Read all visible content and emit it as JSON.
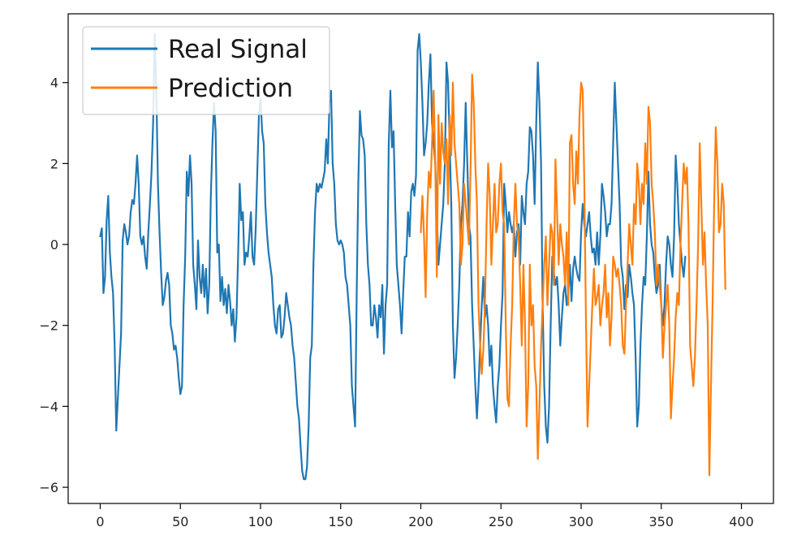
{
  "chart_data": {
    "type": "line",
    "title": "",
    "xlabel": "",
    "ylabel": "",
    "xlim": [
      -20,
      420
    ],
    "ylim": [
      -6.4,
      5.7
    ],
    "xticks": [
      0,
      50,
      100,
      150,
      200,
      250,
      300,
      350,
      400
    ],
    "yticks": [
      -6,
      -4,
      -2,
      0,
      2,
      4
    ],
    "grid": false,
    "legend_position": "top-left",
    "series": [
      {
        "name": "Real Signal",
        "color": "#1f77b4",
        "x_start": 0,
        "values": [
          0.2,
          0.4,
          -1.2,
          -0.8,
          0.6,
          1.2,
          -0.2,
          -0.8,
          -1.2,
          -2.5,
          -4.6,
          -3.8,
          -3.0,
          -2.2,
          0.1,
          0.5,
          0.3,
          0.0,
          0.2,
          0.8,
          1.1,
          1.0,
          1.5,
          2.2,
          1.5,
          0.2,
          0.0,
          0.2,
          -0.3,
          -0.6,
          0.3,
          1.0,
          1.8,
          3.0,
          5.2,
          3.8,
          1.5,
          0.3,
          -0.7,
          -1.5,
          -1.3,
          -0.9,
          -0.7,
          -1.0,
          -2.0,
          -2.2,
          -2.6,
          -2.5,
          -2.8,
          -3.3,
          -3.7,
          -3.5,
          -1.5,
          -0.3,
          1.8,
          1.2,
          2.2,
          1.5,
          -0.5,
          -1.0,
          -1.6,
          0.1,
          -0.8,
          -1.2,
          -0.5,
          -1.3,
          -0.6,
          -1.7,
          -1.0,
          1.2,
          2.5,
          3.5,
          2.8,
          -0.2,
          0.0,
          -1.4,
          -0.8,
          -1.5,
          -1.1,
          -1.7,
          -1.0,
          -1.4,
          -2.0,
          -1.6,
          -2.4,
          -1.8,
          -0.3,
          1.5,
          0.6,
          0.8,
          -0.5,
          -0.2,
          -0.3,
          0.2,
          0.8,
          -0.3,
          -0.5,
          0.4,
          1.8,
          3.2,
          3.6,
          2.8,
          2.5,
          1.0,
          0.3,
          -0.2,
          -0.5,
          -0.8,
          -1.5,
          -2.0,
          -2.2,
          -1.6,
          -1.5,
          -2.3,
          -2.2,
          -1.8,
          -1.2,
          -1.5,
          -1.8,
          -2.0,
          -2.5,
          -2.8,
          -3.4,
          -4.0,
          -4.3,
          -5.0,
          -5.6,
          -5.8,
          -5.8,
          -5.5,
          -4.5,
          -2.8,
          -2.5,
          -0.5,
          0.8,
          1.5,
          1.3,
          1.5,
          1.4,
          1.6,
          1.8,
          2.6,
          2.0,
          3.5,
          3.8,
          2.0,
          1.5,
          0.5,
          0.1,
          0.0,
          0.1,
          0.0,
          -0.2,
          -0.8,
          -1.0,
          -1.5,
          -2.0,
          -3.5,
          -4.0,
          -4.5,
          -1.2,
          1.5,
          3.3,
          2.7,
          2.6,
          2.2,
          0.5,
          -0.5,
          -1.0,
          -2.0,
          -2.0,
          -1.5,
          -1.8,
          -2.3,
          -1.5,
          -1.8,
          -1.0,
          -2.7,
          -1.5,
          -1.0,
          2.5,
          3.8,
          2.4,
          2.8,
          1.0,
          -0.5,
          -1.0,
          -1.5,
          -2.2,
          -1.2,
          -0.3,
          -0.3,
          0.8,
          0.2,
          1.3,
          1.5,
          1.2,
          1.7,
          4.8,
          5.2,
          4.5,
          3.5,
          2.2,
          2.5,
          3.0,
          4.0,
          4.7,
          3.0,
          2.5,
          2.0,
          0.8,
          -0.5,
          0.0,
          0.5,
          1.0,
          2.0,
          4.5,
          4.0,
          2.5,
          1.0,
          -2.0,
          -3.3,
          -2.8,
          -2.0,
          -1.0,
          0.5,
          1.0,
          2.0,
          3.5,
          2.0,
          0.5,
          0.2,
          -1.5,
          -2.5,
          -3.5,
          -4.3,
          -3.5,
          -2.5,
          -1.5,
          -0.8,
          -1.8,
          -1.5,
          -2.0,
          -3.0,
          -2.5,
          -3.5,
          -4.0,
          -4.4,
          -3.5,
          -3.0,
          -2.0,
          -1.2,
          1.5,
          1.0,
          0.3,
          0.8,
          0.5,
          0.3,
          0.5,
          -0.3,
          0.3,
          0.5,
          -0.5,
          1.2,
          0.8,
          0.5,
          1.5,
          1.8,
          2.9,
          2.8,
          2.2,
          1.0,
          3.0,
          4.5,
          3.5,
          2.0,
          -1.5,
          -3.5,
          -4.5,
          -4.9,
          -4.0,
          -2.0,
          -0.3,
          -0.7,
          -1.0,
          -0.8,
          -1.5,
          -2.5,
          -1.8,
          -1.2,
          -1.0,
          -1.5,
          -1.2,
          -0.5,
          -1.4,
          -0.6,
          -0.3,
          -0.6,
          -0.8,
          -0.9,
          0.3,
          1.0,
          0.5,
          0.2,
          0.5,
          0.8,
          0.2,
          -0.2,
          -0.1,
          -0.5,
          0.3,
          -0.5,
          0.2,
          1.5,
          1.2,
          0.8,
          0.2,
          0.5,
          0.5,
          1.0,
          2.5,
          4.0,
          3.0,
          2.0,
          1.0,
          -0.5,
          -0.8,
          -1.6,
          -1.0,
          -1.3,
          -0.5,
          -0.8,
          -1.2,
          -1.5,
          -2.8,
          -4.5,
          -4.0,
          -2.5,
          -1.5,
          -0.8,
          -1.0,
          0.2,
          1.8,
          0.5,
          0.0,
          -0.2,
          -0.8,
          -1.2,
          -1.0,
          -0.5,
          -1.5,
          -2.0,
          -1.5,
          -0.5,
          0.2,
          0.0,
          -0.5,
          -0.8,
          0.2,
          2.2,
          1.5,
          0.5,
          0.0,
          -0.5,
          -0.8,
          -0.3
        ]
      },
      {
        "name": "Prediction",
        "color": "#ff7f0e",
        "x_start": 200,
        "values": [
          0.3,
          1.2,
          0.2,
          -1.3,
          0.8,
          1.8,
          1.4,
          2.5,
          3.8,
          2.0,
          -0.8,
          3.2,
          1.5,
          3.0,
          2.3,
          2.0,
          2.6,
          1.0,
          3.2,
          2.2,
          4.0,
          2.5,
          2.0,
          1.5,
          1.0,
          -0.5,
          0.0,
          1.5,
          1.0,
          0.5,
          0.0,
          1.8,
          4.2,
          3.5,
          2.0,
          1.0,
          -1.5,
          -2.5,
          -3.2,
          -2.6,
          -1.5,
          0.5,
          2.0,
          1.2,
          -0.5,
          0.5,
          1.5,
          0.3,
          0.5,
          1.5,
          2.0,
          0.8,
          0.5,
          -2.0,
          -3.8,
          -4.0,
          -2.5,
          -1.5,
          0.5,
          1.5,
          0.5,
          0.2,
          -1.0,
          -2.5,
          -0.5,
          -2.0,
          -4.5,
          -3.5,
          -0.5,
          -2.0,
          -1.5,
          -3.0,
          -3.5,
          -5.3,
          -4.0,
          -2.5,
          -1.5,
          -0.5,
          0.2,
          -1.5,
          -0.5,
          0.5,
          0.3,
          -1.0,
          2.1,
          0.8,
          -0.5,
          0.5,
          0.0,
          -0.3,
          -1.0,
          0.3,
          -1.5,
          2.5,
          2.7,
          1.5,
          1.0,
          2.3,
          1.5,
          3.2,
          4.0,
          3.8,
          1.5,
          -1.8,
          -4.5,
          -3.5,
          -2.5,
          -1.5,
          -0.6,
          -1.5,
          -1.3,
          -1.0,
          -2.0,
          -1.5,
          -1.2,
          -0.5,
          -1.8,
          -1.2,
          -2.5,
          -1.8,
          -0.3,
          -0.5,
          -0.8,
          -0.6,
          -1.0,
          -1.5,
          -2.5,
          -2.7,
          -1.5,
          -0.5,
          0.5,
          0.0,
          -0.5,
          1.0,
          0.5,
          2.0,
          1.5,
          0.5,
          1.5,
          1.0,
          2.5,
          1.5,
          3.4,
          3.0,
          1.5,
          1.0,
          0.3,
          -1.0,
          -0.5,
          -1.0,
          -1.5,
          -2.8,
          -2.0,
          -1.5,
          -1.0,
          -2.0,
          -4.3,
          -3.5,
          -2.8,
          -1.8,
          -1.2,
          -1.5,
          0.0,
          1.0,
          2.0,
          1.5,
          1.9,
          0.5,
          -2.5,
          -3.0,
          -3.5,
          -2.8,
          -1.5,
          0.0,
          2.5,
          1.0,
          -0.5,
          0.3,
          -1.0,
          -2.0,
          -5.7,
          -3.5,
          -1.5,
          1.0,
          2.9,
          2.0,
          0.3,
          0.5,
          1.5,
          1.0,
          -1.1
        ]
      }
    ]
  }
}
